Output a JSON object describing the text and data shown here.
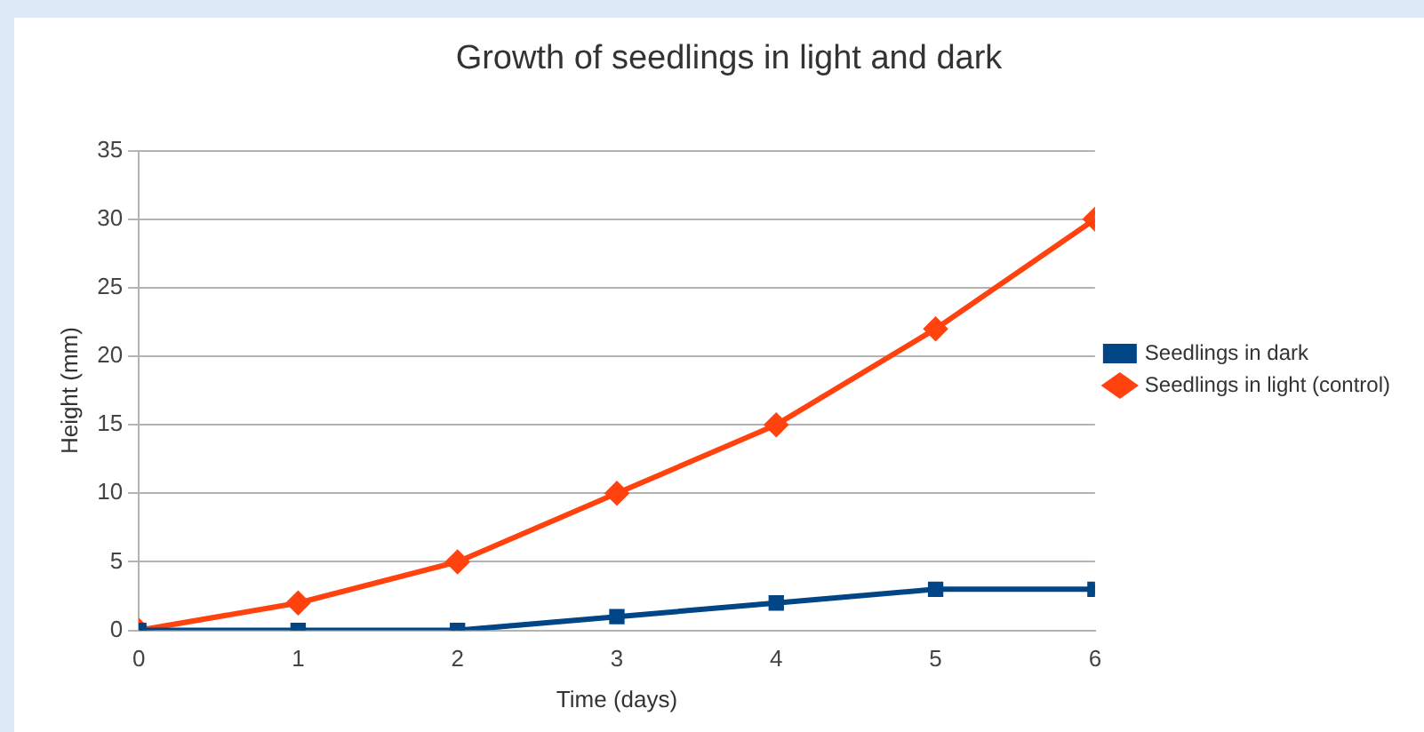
{
  "chart_data": {
    "type": "line",
    "title": "Growth of seedlings in light and dark",
    "xlabel": "Time (days)",
    "ylabel": "Height (mm)",
    "x": [
      0,
      1,
      2,
      3,
      4,
      5,
      6
    ],
    "series": [
      {
        "name": "Seedlings in dark",
        "color": "#004586",
        "marker": "square",
        "values": [
          0,
          0,
          0,
          1,
          2,
          3,
          3
        ]
      },
      {
        "name": "Seedlings in light (control)",
        "color": "#ff420e",
        "marker": "diamond",
        "values": [
          0,
          2,
          5,
          10,
          15,
          22,
          30
        ]
      }
    ],
    "xlim": [
      0,
      6
    ],
    "xticks": [
      0,
      1,
      2,
      3,
      4,
      5,
      6
    ],
    "ylim": [
      0,
      35
    ],
    "yticks": [
      0,
      5,
      10,
      15,
      20,
      25,
      30,
      35
    ],
    "grid": "y",
    "legend": "right",
    "line_style": "solid"
  }
}
